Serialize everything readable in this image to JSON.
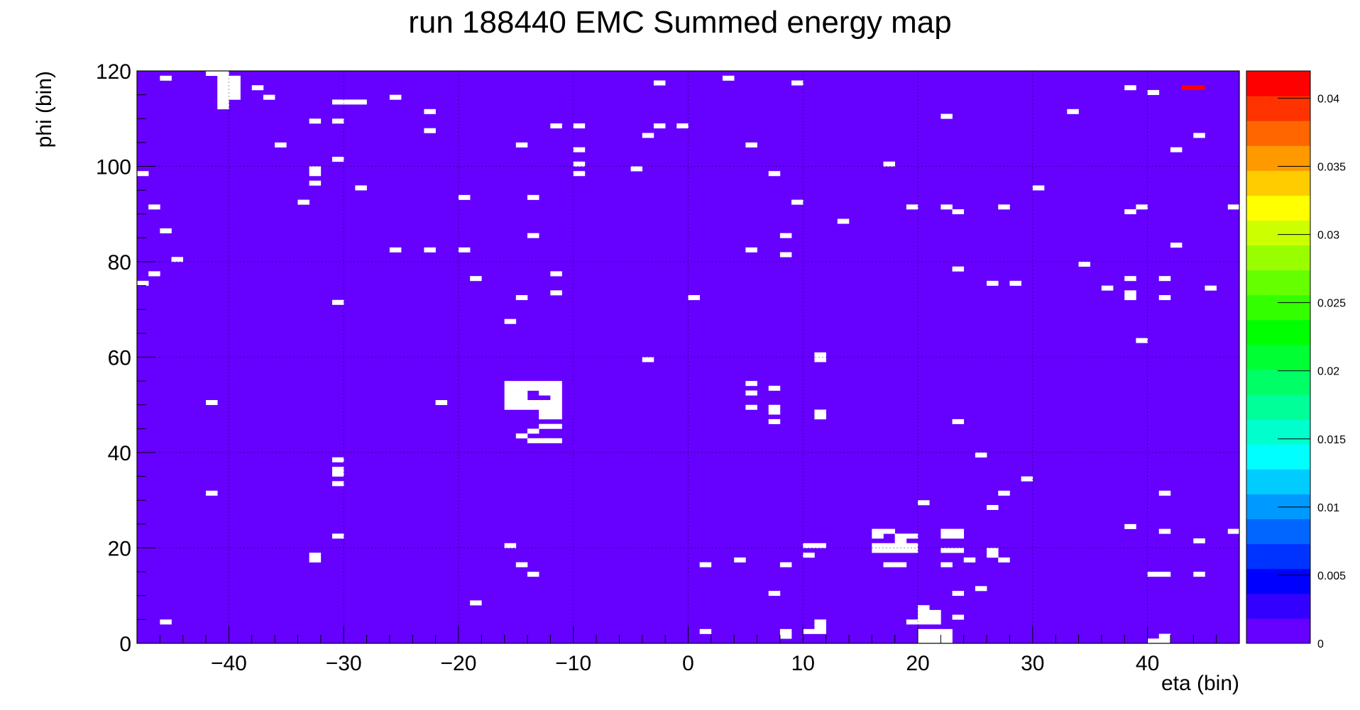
{
  "chart_data": {
    "type": "heatmap",
    "title": "run 188440 EMC  Summed energy map",
    "xlabel": "eta (bin)",
    "ylabel": "phi (bin)",
    "xlim": [
      -48,
      48
    ],
    "ylim": [
      0,
      120
    ],
    "x_ticks": [
      -40,
      -30,
      -20,
      -10,
      0,
      10,
      20,
      30,
      40
    ],
    "x_tick_labels": [
      "−40",
      "−30",
      "−20",
      "−10",
      "0",
      "10",
      "20",
      "30",
      "40"
    ],
    "y_ticks": [
      0,
      20,
      40,
      60,
      80,
      100,
      120
    ],
    "y_tick_labels": [
      "0",
      "20",
      "40",
      "60",
      "80",
      "100",
      "120"
    ],
    "grid": true,
    "colorbar": {
      "min": 0,
      "max": 0.042,
      "ticks": [
        0,
        0.005,
        0.01,
        0.015,
        0.02,
        0.025,
        0.03,
        0.035,
        0.04
      ],
      "tick_labels": [
        "0",
        "0.005",
        "0.01",
        "0.015",
        "0.02",
        "0.025",
        "0.03",
        "0.035",
        "0.04"
      ],
      "colors": [
        "#6600ff",
        "#3300ff",
        "#0000ff",
        "#0033ff",
        "#0066ff",
        "#0099ff",
        "#00ccff",
        "#00ffff",
        "#00ffcc",
        "#00ff99",
        "#00ff66",
        "#00ff33",
        "#00ff00",
        "#33ff00",
        "#66ff00",
        "#99ff00",
        "#ccff00",
        "#ffff00",
        "#ffcc00",
        "#ff9900",
        "#ff6600",
        "#ff3300",
        "#ff0000"
      ]
    },
    "background_value": 0.0005,
    "background_color": "#6600ff",
    "hot_cells": [
      {
        "x": 43,
        "y": 116,
        "value": 0.041
      }
    ],
    "empty_cells": [
      [
        -42,
        119
      ],
      [
        -41,
        119
      ],
      [
        -41,
        118
      ],
      [
        -40,
        118
      ],
      [
        -41,
        117
      ],
      [
        -40,
        117
      ],
      [
        -41,
        116
      ],
      [
        -40,
        116
      ],
      [
        -41,
        115
      ],
      [
        -40,
        115
      ],
      [
        -41,
        114
      ],
      [
        -40,
        114
      ],
      [
        -41,
        113
      ],
      [
        -41,
        112
      ],
      [
        -46,
        118
      ],
      [
        -38,
        116
      ],
      [
        -37,
        114
      ],
      [
        -36,
        104
      ],
      [
        -31,
        113
      ],
      [
        -30,
        113
      ],
      [
        -29,
        113
      ],
      [
        -31,
        109
      ],
      [
        -33,
        109
      ],
      [
        -31,
        101
      ],
      [
        -33,
        99
      ],
      [
        -33,
        98
      ],
      [
        -33,
        96
      ],
      [
        -29,
        95
      ],
      [
        -34,
        92
      ],
      [
        -48,
        98
      ],
      [
        -47,
        91
      ],
      [
        -46,
        86
      ],
      [
        -45,
        80
      ],
      [
        -47,
        77
      ],
      [
        -48,
        75
      ],
      [
        -26,
        114
      ],
      [
        -23,
        111
      ],
      [
        -23,
        107
      ],
      [
        -20,
        93
      ],
      [
        -26,
        82
      ],
      [
        -23,
        82
      ],
      [
        -20,
        82
      ],
      [
        -19,
        76
      ],
      [
        -31,
        71
      ],
      [
        -15,
        104
      ],
      [
        -14,
        93
      ],
      [
        -14,
        85
      ],
      [
        -12,
        108
      ],
      [
        -10,
        108
      ],
      [
        -10,
        103
      ],
      [
        -10,
        100
      ],
      [
        -10,
        98
      ],
      [
        -5,
        99
      ],
      [
        -4,
        106
      ],
      [
        -3,
        108
      ],
      [
        -3,
        117
      ],
      [
        -1,
        108
      ],
      [
        -12,
        77
      ],
      [
        -12,
        73
      ],
      [
        -15,
        72
      ],
      [
        -16,
        67
      ],
      [
        3,
        118
      ],
      [
        9,
        117
      ],
      [
        5,
        104
      ],
      [
        7,
        98
      ],
      [
        9,
        92
      ],
      [
        8,
        85
      ],
      [
        8,
        81
      ],
      [
        5,
        82
      ],
      [
        0,
        72
      ],
      [
        -4,
        59
      ],
      [
        11,
        60
      ],
      [
        11,
        59
      ],
      [
        -16,
        54
      ],
      [
        -15,
        54
      ],
      [
        -14,
        54
      ],
      [
        -13,
        54
      ],
      [
        -12,
        54
      ],
      [
        -16,
        53
      ],
      [
        -15,
        53
      ],
      [
        -14,
        53
      ],
      [
        -13,
        53
      ],
      [
        -12,
        53
      ],
      [
        -16,
        52
      ],
      [
        -15,
        52
      ],
      [
        -13,
        52
      ],
      [
        -12,
        52
      ],
      [
        -16,
        51
      ],
      [
        -15,
        51
      ],
      [
        -12,
        51
      ],
      [
        -16,
        50
      ],
      [
        -15,
        50
      ],
      [
        -14,
        50
      ],
      [
        -13,
        50
      ],
      [
        -12,
        50
      ],
      [
        -16,
        49
      ],
      [
        -15,
        49
      ],
      [
        -14,
        49
      ],
      [
        -13,
        49
      ],
      [
        -12,
        49
      ],
      [
        -13,
        48
      ],
      [
        -12,
        48
      ],
      [
        -13,
        47
      ],
      [
        -12,
        47
      ],
      [
        -13,
        45
      ],
      [
        -12,
        45
      ],
      [
        -14,
        44
      ],
      [
        -15,
        43
      ],
      [
        -14,
        42
      ],
      [
        -13,
        42
      ],
      [
        -12,
        42
      ],
      [
        -42,
        50
      ],
      [
        -22,
        50
      ],
      [
        5,
        54
      ],
      [
        7,
        53
      ],
      [
        5,
        52
      ],
      [
        5,
        49
      ],
      [
        7,
        49
      ],
      [
        7,
        48
      ],
      [
        11,
        48
      ],
      [
        11,
        47
      ],
      [
        7,
        46
      ],
      [
        -31,
        38
      ],
      [
        -31,
        36
      ],
      [
        -31,
        35
      ],
      [
        -31,
        33
      ],
      [
        -42,
        31
      ],
      [
        -31,
        22
      ],
      [
        -33,
        18
      ],
      [
        -33,
        17
      ],
      [
        -16,
        20
      ],
      [
        -15,
        16
      ],
      [
        -14,
        14
      ],
      [
        -19,
        8
      ],
      [
        -46,
        4
      ],
      [
        1,
        16
      ],
      [
        4,
        17
      ],
      [
        8,
        16
      ],
      [
        10,
        20
      ],
      [
        11,
        20
      ],
      [
        10,
        18
      ],
      [
        7,
        10
      ],
      [
        1,
        2
      ],
      [
        8,
        2
      ],
      [
        8,
        1
      ],
      [
        10,
        2
      ],
      [
        11,
        2
      ],
      [
        11,
        3
      ],
      [
        11,
        4
      ],
      [
        16,
        23
      ],
      [
        17,
        23
      ],
      [
        18,
        22
      ],
      [
        19,
        22
      ],
      [
        16,
        22
      ],
      [
        16,
        20
      ],
      [
        17,
        20
      ],
      [
        18,
        20
      ],
      [
        19,
        20
      ],
      [
        16,
        19
      ],
      [
        17,
        19
      ],
      [
        18,
        19
      ],
      [
        19,
        19
      ],
      [
        18,
        21
      ],
      [
        17,
        16
      ],
      [
        18,
        16
      ],
      [
        20,
        7
      ],
      [
        20,
        6
      ],
      [
        21,
        6
      ],
      [
        20,
        5
      ],
      [
        21,
        5
      ],
      [
        19,
        4
      ],
      [
        20,
        4
      ],
      [
        21,
        4
      ],
      [
        20,
        2
      ],
      [
        21,
        2
      ],
      [
        20,
        1
      ],
      [
        21,
        1
      ],
      [
        20,
        0
      ],
      [
        21,
        0
      ],
      [
        22,
        2
      ],
      [
        22,
        1
      ],
      [
        22,
        0
      ],
      [
        22,
        23
      ],
      [
        23,
        23
      ],
      [
        22,
        22
      ],
      [
        23,
        22
      ],
      [
        22,
        19
      ],
      [
        23,
        19
      ],
      [
        24,
        17
      ],
      [
        22,
        16
      ],
      [
        26,
        19
      ],
      [
        26,
        18
      ],
      [
        27,
        17
      ],
      [
        25,
        11
      ],
      [
        23,
        10
      ],
      [
        23,
        5
      ],
      [
        20,
        29
      ],
      [
        26,
        28
      ],
      [
        27,
        31
      ],
      [
        29,
        34
      ],
      [
        25,
        39
      ],
      [
        23,
        46
      ],
      [
        17,
        100
      ],
      [
        19,
        91
      ],
      [
        22,
        91
      ],
      [
        23,
        90
      ],
      [
        23,
        78
      ],
      [
        22,
        110
      ],
      [
        13,
        88
      ],
      [
        26,
        75
      ],
      [
        28,
        75
      ],
      [
        27,
        91
      ],
      [
        30,
        95
      ],
      [
        33,
        111
      ],
      [
        34,
        79
      ],
      [
        36,
        74
      ],
      [
        38,
        76
      ],
      [
        38,
        73
      ],
      [
        38,
        72
      ],
      [
        39,
        63
      ],
      [
        39,
        91
      ],
      [
        38,
        90
      ],
      [
        41,
        76
      ],
      [
        41,
        72
      ],
      [
        42,
        83
      ],
      [
        42,
        103
      ],
      [
        40,
        115
      ],
      [
        38,
        116
      ],
      [
        44,
        106
      ],
      [
        45,
        74
      ],
      [
        47,
        91
      ],
      [
        38,
        24
      ],
      [
        41,
        23
      ],
      [
        41,
        31
      ],
      [
        44,
        21
      ],
      [
        47,
        23
      ],
      [
        40,
        14
      ],
      [
        41,
        14
      ],
      [
        44,
        14
      ],
      [
        40,
        0
      ],
      [
        41,
        0
      ],
      [
        41,
        1
      ]
    ]
  }
}
